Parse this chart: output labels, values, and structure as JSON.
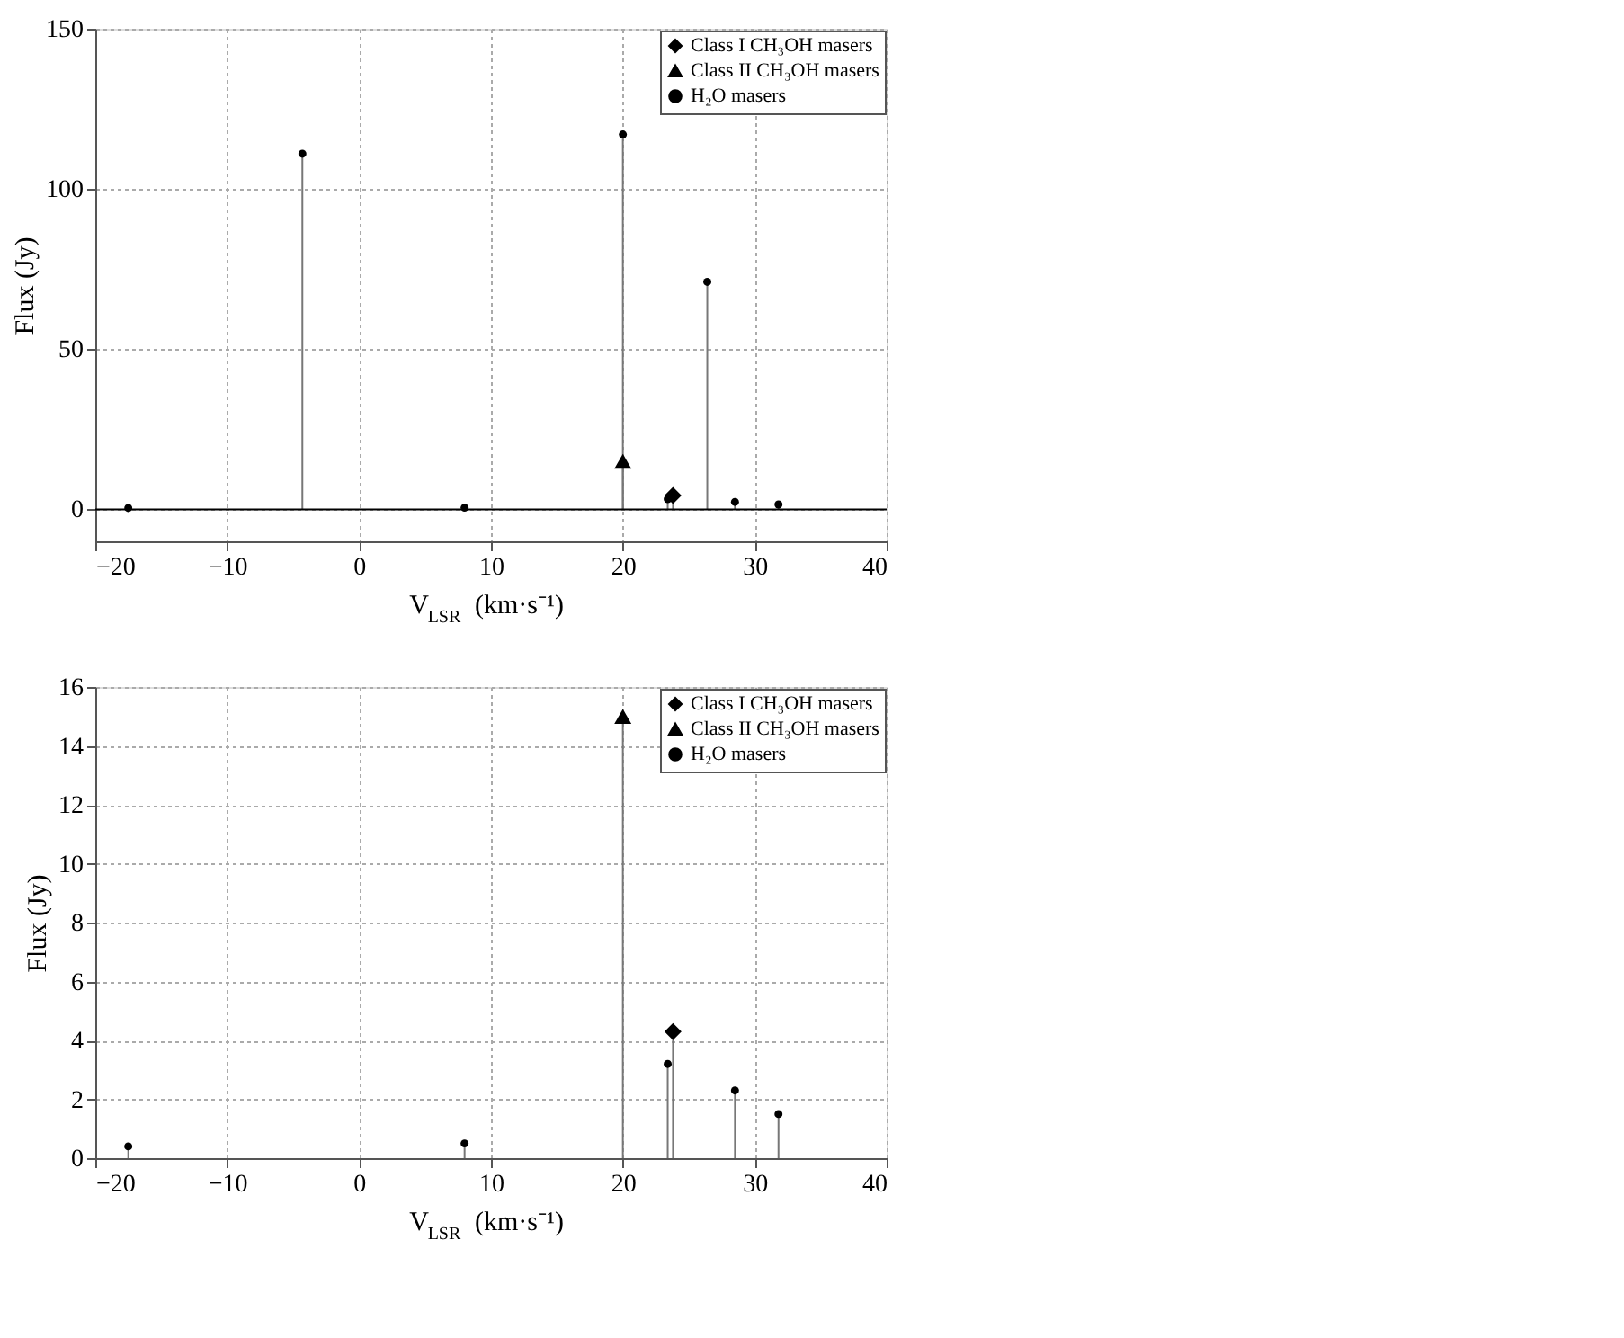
{
  "chart_data": [
    {
      "type": "lollipop",
      "xlabel": "V$_{LSR}$ (km·s⁻¹)",
      "ylabel": "Flux (Jy)",
      "xlim": [
        -20,
        40
      ],
      "xticks": [
        -20,
        -10,
        0,
        10,
        20,
        30,
        40
      ],
      "ylim": [
        -10,
        150
      ],
      "yticks": [
        0,
        50,
        100,
        150
      ],
      "grid": true,
      "legend": "top right",
      "ref_lines": [
        {
          "axis": "y",
          "value": 0,
          "color": "#000000"
        }
      ],
      "series": [
        {
          "name": "Class I CH₃OH masers",
          "color": "#000000",
          "marker": "diamond",
          "x": [
            23.8
          ],
          "values": [
            4.3
          ]
        },
        {
          "name": "Class II CH₃OH masers",
          "color": "#000000",
          "marker": "triangle",
          "x": [
            20.0
          ],
          "values": [
            15
          ]
        },
        {
          "name": "H₂O masers",
          "color": "#000000",
          "marker": "circle",
          "x": [
            -17.5,
            -4.3,
            8.0,
            20.0,
            23.4,
            26.4,
            28.5,
            31.8
          ],
          "values": [
            0.4,
            111,
            0.5,
            117,
            3.2,
            71,
            2.3,
            1.5
          ]
        }
      ]
    },
    {
      "type": "lollipop",
      "xlabel": "V$_{LSR}$ (km·s⁻¹)",
      "ylabel": "Flux (Jy)",
      "xlim": [
        -20,
        40
      ],
      "xticks": [
        -20,
        -10,
        0,
        10,
        20,
        30,
        40
      ],
      "ylim": [
        0,
        16
      ],
      "yticks": [
        0,
        2,
        4,
        6,
        8,
        10,
        12,
        14,
        16
      ],
      "grid": true,
      "legend": "top right",
      "series": [
        {
          "name": "Class I CH₃OH masers",
          "color": "#000000",
          "marker": "diamond",
          "x": [
            23.8
          ],
          "values": [
            4.3
          ]
        },
        {
          "name": "Class II CH₃OH masers",
          "color": "#000000",
          "marker": "triangle",
          "x": [
            20.0
          ],
          "values": [
            15
          ]
        },
        {
          "name": "H₂O masers",
          "color": "#000000",
          "marker": "circle",
          "x": [
            -17.5,
            8.0,
            23.4,
            28.5,
            31.8
          ],
          "values": [
            0.4,
            0.5,
            3.2,
            2.3,
            1.5
          ]
        }
      ]
    }
  ]
}
